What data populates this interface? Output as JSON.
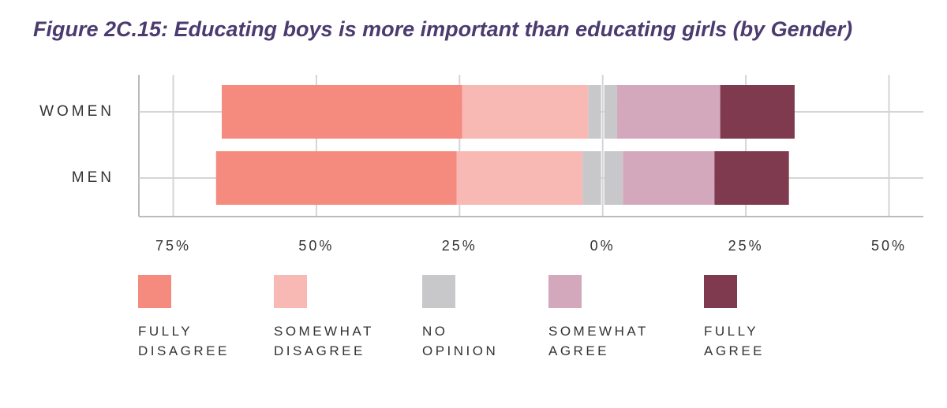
{
  "chart_data": {
    "type": "diverging-bar",
    "title": "Figure 2C.15: Educating boys is more important than educating girls (by Gender)",
    "categories": [
      "WOMEN",
      "MEN"
    ],
    "series": [
      {
        "name": "FULLY DISAGREE",
        "color": "#f58b7f",
        "values": [
          42,
          42
        ]
      },
      {
        "name": "SOMEWHAT DISAGREE",
        "color": "#f8b9b5",
        "values": [
          22,
          22
        ]
      },
      {
        "name": "NO OPINION",
        "color": "#c8c8cb",
        "values": [
          4.5,
          6.5
        ]
      },
      {
        "name": "SOMEWHAT AGREE",
        "color": "#d4a8bc",
        "values": [
          18,
          16
        ]
      },
      {
        "name": "FULLY AGREE",
        "color": "#7f3a4f",
        "values": [
          13,
          13
        ]
      }
    ],
    "xlim": [
      -81,
      56
    ],
    "xticks": [
      {
        "value": -75,
        "label": "75%"
      },
      {
        "value": -50,
        "label": "50%"
      },
      {
        "value": -25,
        "label": "25%"
      },
      {
        "value": 0,
        "label": "0%"
      },
      {
        "value": 25,
        "label": "25%"
      },
      {
        "value": 50,
        "label": "50%"
      }
    ],
    "grid": true
  }
}
